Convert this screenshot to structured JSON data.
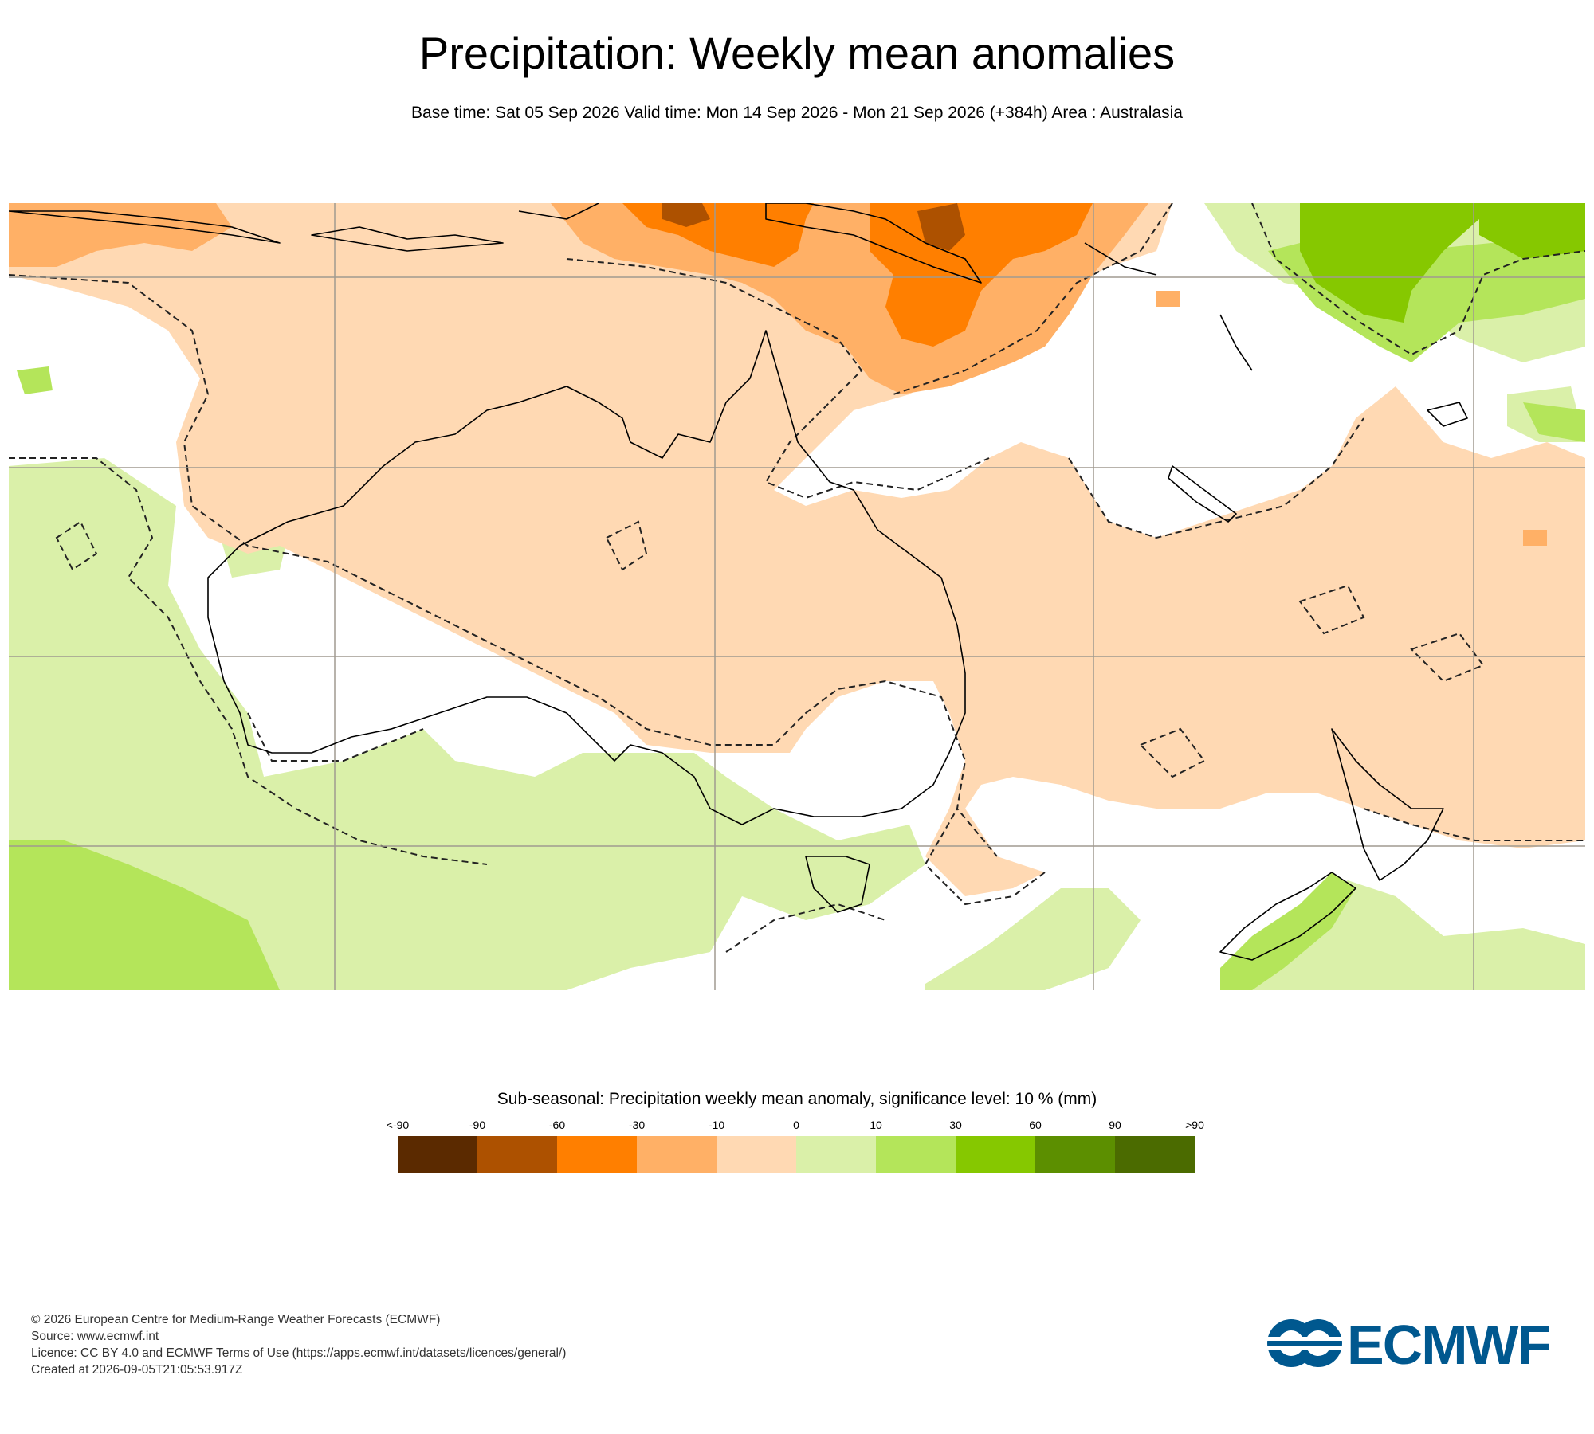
{
  "title": "Precipitation: Weekly mean anomalies",
  "subtitle": "Base time: Sat 05 Sep 2026 Valid time: Mon 14 Sep 2026 - Mon 21 Sep 2026 (+384h) Area : Australasia",
  "map": {
    "area": "Australasia",
    "significance_contour_style": "dashed",
    "colors": {
      "ocean_neutral": "#ffffff",
      "lt_-90": "#5b2a00",
      "-90_-60": "#ad5100",
      "-60_-30": "#ff7f00",
      "-30_-10": "#ffb066",
      "-10_0": "#ffd9b3",
      "0_10": "#daf0a9",
      "10_30": "#b4e55a",
      "30_60": "#86c800",
      "60_90": "#5c8f00",
      "gt_90": "#4b6b00",
      "coastline": "#000000",
      "gridline": "#a09a90"
    }
  },
  "legend": {
    "title": "Sub-seasonal: Precipitation weekly mean anomaly, significance level: 10 % (mm)",
    "ticks": [
      "<-90",
      "-90",
      "-60",
      "-30",
      "-10",
      "0",
      "10",
      "30",
      "60",
      "90",
      ">90"
    ],
    "colors": [
      "#5b2a00",
      "#ad5100",
      "#ff7f00",
      "#ffb066",
      "#ffd9b3",
      "#daf0a9",
      "#b4e55a",
      "#86c800",
      "#5c8f00",
      "#4b6b00"
    ]
  },
  "footer": {
    "copyright": "© 2026 European Centre for Medium-Range Weather Forecasts (ECMWF)",
    "source": "Source: www.ecmwf.int",
    "licence": "Licence: CC BY 4.0 and ECMWF Terms of Use (https://apps.ecmwf.int/datasets/licences/general/)",
    "created": "Created at 2026-09-05T21:05:53.917Z"
  },
  "logo": {
    "text": "ECMWF",
    "color": "#00588f"
  }
}
